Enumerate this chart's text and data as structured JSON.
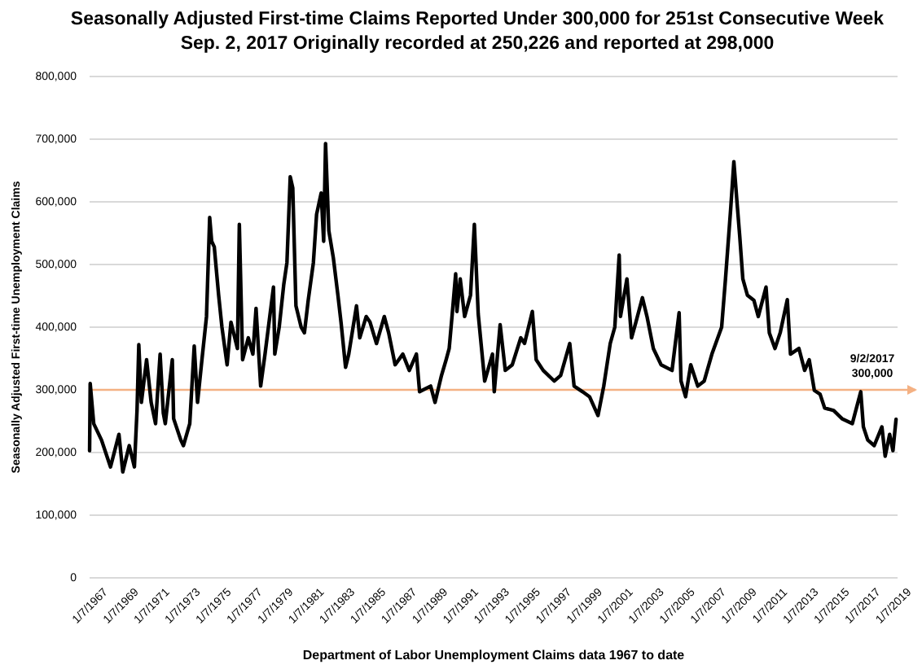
{
  "chart_data": {
    "type": "line",
    "title": "Seasonally Adjusted First-time Claims Reported Under 300,000 for 251st Consecutive Week",
    "subtitle": "Sep. 2, 2017 Originally recorded at 250,226 and reported at 298,000",
    "xlabel": "Department of Labor Unemployment Claims data 1967 to date",
    "ylabel": "Seasonally Adjusted First-time Unemployment Claims",
    "annotations": [
      {
        "text": "9/2/2017\n300,000",
        "x": "2017-09-02",
        "y": 300000
      }
    ],
    "ref_lines": [
      {
        "axis": "y",
        "value": 300000,
        "color": "#f4b183"
      }
    ],
    "grid": "y",
    "marker": "none",
    "line_style": "solid",
    "ylim": [
      0,
      800000
    ],
    "yticks": [
      {
        "value": 0,
        "label": "0"
      },
      {
        "value": 100000,
        "label": "100,000"
      },
      {
        "value": 200000,
        "label": "200,000"
      },
      {
        "value": 300000,
        "label": "300,000"
      },
      {
        "value": 400000,
        "label": "400,000"
      },
      {
        "value": 500000,
        "label": "500,000"
      },
      {
        "value": 600000,
        "label": "600,000"
      },
      {
        "value": 700000,
        "label": "700,000"
      },
      {
        "value": 800000,
        "label": "800,000"
      }
    ],
    "xlim": [
      "1967-01-07",
      "2019-04-20"
    ],
    "xticks": [
      {
        "value": "1967-01-07",
        "label": "1/7/1967"
      },
      {
        "value": "1969-01-07",
        "label": "1/7/1969"
      },
      {
        "value": "1971-01-07",
        "label": "1/7/1971"
      },
      {
        "value": "1973-01-07",
        "label": "1/7/1973"
      },
      {
        "value": "1975-01-07",
        "label": "1/7/1975"
      },
      {
        "value": "1977-01-07",
        "label": "1/7/1977"
      },
      {
        "value": "1979-01-07",
        "label": "1/7/1979"
      },
      {
        "value": "1981-01-07",
        "label": "1/7/1981"
      },
      {
        "value": "1983-01-07",
        "label": "1/7/1983"
      },
      {
        "value": "1985-01-07",
        "label": "1/7/1985"
      },
      {
        "value": "1987-01-07",
        "label": "1/7/1987"
      },
      {
        "value": "1989-01-07",
        "label": "1/7/1989"
      },
      {
        "value": "1991-01-07",
        "label": "1/7/1991"
      },
      {
        "value": "1993-01-07",
        "label": "1/7/1993"
      },
      {
        "value": "1995-01-07",
        "label": "1/7/1995"
      },
      {
        "value": "1997-01-07",
        "label": "1/7/1997"
      },
      {
        "value": "1999-01-07",
        "label": "1/7/1999"
      },
      {
        "value": "2001-01-07",
        "label": "1/7/2001"
      },
      {
        "value": "2003-01-07",
        "label": "1/7/2003"
      },
      {
        "value": "2005-01-07",
        "label": "1/7/2005"
      },
      {
        "value": "2007-01-07",
        "label": "1/7/2007"
      },
      {
        "value": "2009-01-07",
        "label": "1/7/2009"
      },
      {
        "value": "2011-01-07",
        "label": "1/7/2011"
      },
      {
        "value": "2013-01-07",
        "label": "1/7/2013"
      },
      {
        "value": "2015-01-07",
        "label": "1/7/2015"
      },
      {
        "value": "2017-01-07",
        "label": "1/7/2017"
      },
      {
        "value": "2019-01-07",
        "label": "1/7/2019"
      }
    ],
    "series": [
      {
        "color": "#000000",
        "x": [
          "1967-01-07",
          "1967-01-21",
          "1967-04-15",
          "1967-10-15",
          "1968-05-15",
          "1968-12-01",
          "1969-03-01",
          "1969-08-01",
          "1969-12-01",
          "1970-02-01",
          "1970-03-15",
          "1970-05-15",
          "1970-09-15",
          "1971-01-01",
          "1971-04-15",
          "1971-08-01",
          "1971-10-15",
          "1971-12-01",
          "1972-05-15",
          "1972-06-15",
          "1972-12-01",
          "1973-02-01",
          "1973-07-01",
          "1973-10-15",
          "1974-01-01",
          "1974-04-15",
          "1974-08-01",
          "1974-10-15",
          "1974-12-01",
          "1975-02-01",
          "1975-05-15",
          "1975-08-01",
          "1975-12-01",
          "1976-03-01",
          "1976-08-01",
          "1976-09-15",
          "1976-12-01",
          "1977-04-15",
          "1977-08-01",
          "1977-10-15",
          "1978-02-01",
          "1978-05-15",
          "1978-12-01",
          "1979-01-01",
          "1979-04-15",
          "1979-08-01",
          "1979-10-15",
          "1980-01-01",
          "1980-03-01",
          "1980-05-15",
          "1980-09-15",
          "1980-12-01",
          "1981-03-01",
          "1981-07-01",
          "1981-09-15",
          "1982-01-01",
          "1982-03-01",
          "1982-04-15",
          "1982-07-01",
          "1982-10-15",
          "1983-02-01",
          "1983-04-15",
          "1983-08-01",
          "1983-10-15",
          "1984-04-15",
          "1984-07-01",
          "1984-12-01",
          "1985-03-01",
          "1985-08-01",
          "1986-02-01",
          "1986-05-15",
          "1986-10-15",
          "1987-04-15",
          "1987-09-15",
          "1988-03-01",
          "1988-05-15",
          "1989-02-01",
          "1989-05-15",
          "1989-10-15",
          "1990-02-01",
          "1990-04-15",
          "1990-07-01",
          "1990-09-15",
          "1990-10-15",
          "1991-01-01",
          "1991-04-15",
          "1991-09-01",
          "1991-12-01",
          "1992-03-01",
          "1992-08-01",
          "1993-02-01",
          "1993-03-15",
          "1993-08-01",
          "1993-12-01",
          "1994-05-15",
          "1994-12-01",
          "1995-03-01",
          "1995-09-01",
          "1995-12-01",
          "1996-05-15",
          "1997-02-01",
          "1997-07-01",
          "1998-02-01",
          "1998-05-15",
          "1998-12-01",
          "1999-05-15",
          "1999-12-01",
          "2000-04-15",
          "2000-09-15",
          "2001-01-01",
          "2001-04-15",
          "2001-05-15",
          "2001-10-15",
          "2002-02-01",
          "2002-05-15",
          "2002-10-15",
          "2003-02-01",
          "2003-07-01",
          "2004-01-01",
          "2004-09-15",
          "2005-03-01",
          "2005-04-15",
          "2005-08-01",
          "2005-12-01",
          "2006-05-15",
          "2006-10-15",
          "2007-04-15",
          "2007-12-01",
          "2008-03-01",
          "2008-07-01",
          "2008-09-15",
          "2008-12-01",
          "2009-02-01",
          "2009-04-15",
          "2009-08-01",
          "2010-01-01",
          "2010-04-15",
          "2010-10-15",
          "2011-01-01",
          "2011-05-15",
          "2011-09-15",
          "2012-03-01",
          "2012-05-15",
          "2012-12-01",
          "2013-04-15",
          "2013-08-01",
          "2013-12-01",
          "2014-04-15",
          "2014-08-01",
          "2015-03-01",
          "2015-09-15",
          "2016-05-15",
          "2016-12-01",
          "2017-02-01",
          "2017-05-15",
          "2017-10-15",
          "2018-04-15",
          "2018-07-01",
          "2018-10-15",
          "2019-01-01",
          "2019-03-15"
        ],
        "values": [
          203000,
          310000,
          246000,
          220000,
          177000,
          229000,
          169000,
          211000,
          177000,
          267000,
          372000,
          280000,
          348000,
          280000,
          246000,
          357000,
          263000,
          246000,
          348000,
          254000,
          220000,
          211000,
          246000,
          370000,
          280000,
          348000,
          417000,
          575000,
          537000,
          528000,
          451000,
          400000,
          340000,
          408000,
          366000,
          564000,
          348000,
          383000,
          357000,
          430000,
          306000,
          357000,
          464000,
          357000,
          400000,
          468000,
          503000,
          640000,
          622000,
          434000,
          400000,
          391000,
          443000,
          503000,
          580000,
          614000,
          537000,
          693000,
          554000,
          511000,
          451000,
          408000,
          336000,
          357000,
          434000,
          383000,
          417000,
          408000,
          374000,
          417000,
          391000,
          340000,
          357000,
          331000,
          357000,
          297000,
          306000,
          280000,
          323000,
          348000,
          366000,
          425000,
          485000,
          425000,
          477000,
          417000,
          451000,
          564000,
          421000,
          314000,
          357000,
          297000,
          404000,
          331000,
          340000,
          383000,
          374000,
          425000,
          348000,
          331000,
          314000,
          323000,
          374000,
          306000,
          297000,
          289000,
          259000,
          306000,
          374000,
          400000,
          515000,
          417000,
          477000,
          383000,
          408000,
          447000,
          417000,
          366000,
          340000,
          331000,
          423000,
          314000,
          289000,
          340000,
          306000,
          314000,
          357000,
          400000,
          477000,
          588000,
          664000,
          597000,
          545000,
          477000,
          451000,
          443000,
          417000,
          464000,
          391000,
          366000,
          391000,
          444000,
          357000,
          366000,
          331000,
          348000,
          299000,
          293000,
          271000,
          267000,
          254000,
          246000,
          297000,
          241000,
          220000,
          211000,
          241000,
          194000,
          229000,
          203000,
          253000
        ]
      }
    ]
  }
}
